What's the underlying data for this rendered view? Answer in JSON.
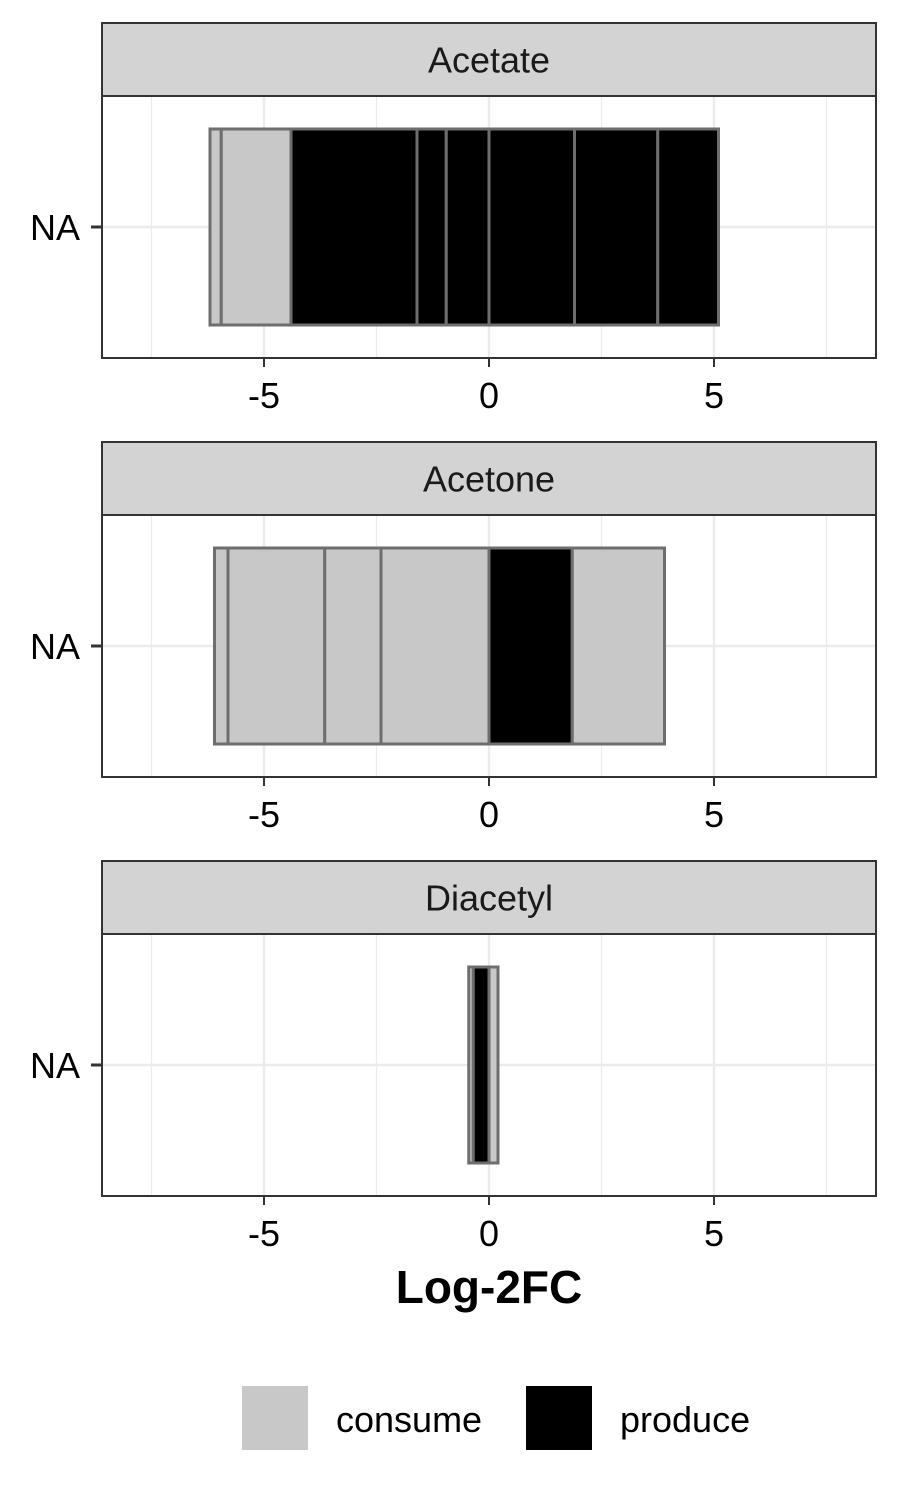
{
  "chart_data": {
    "type": "bar",
    "orientation": "horizontal",
    "stacking": "cumulative segments",
    "xlabel": "Log-2FC",
    "xlim": [
      -8.6,
      8.6
    ],
    "xticks": [
      -5,
      0,
      5
    ],
    "xticks_labels": [
      "-5",
      "0",
      "5"
    ],
    "minor_gridlines": [
      -7.5,
      -2.5,
      2.5,
      7.5
    ],
    "ytick_label": "NA",
    "grid": true,
    "legend_position": "bottom",
    "legend": [
      {
        "key": "consume",
        "label": "consume",
        "color": "#c8c8c8"
      },
      {
        "key": "produce",
        "label": "produce",
        "color": "#000000"
      }
    ],
    "outline_color": "#6e6e6e",
    "panels": [
      {
        "title": "Acetate",
        "segments": [
          {
            "from": -6.2,
            "to": -5.95,
            "type": "consume"
          },
          {
            "from": -5.95,
            "to": -4.4,
            "type": "consume"
          },
          {
            "from": -4.4,
            "to": -1.6,
            "type": "produce"
          },
          {
            "from": -1.6,
            "to": -0.95,
            "type": "produce"
          },
          {
            "from": -0.95,
            "to": 0.0,
            "type": "produce"
          },
          {
            "from": 0.0,
            "to": 1.9,
            "type": "produce"
          },
          {
            "from": 1.9,
            "to": 3.75,
            "type": "produce"
          },
          {
            "from": 3.75,
            "to": 5.1,
            "type": "produce"
          }
        ]
      },
      {
        "title": "Acetone",
        "segments": [
          {
            "from": -6.1,
            "to": -5.8,
            "type": "consume"
          },
          {
            "from": -5.8,
            "to": -3.65,
            "type": "consume"
          },
          {
            "from": -3.65,
            "to": -2.4,
            "type": "consume"
          },
          {
            "from": -2.4,
            "to": 0.0,
            "type": "consume"
          },
          {
            "from": 0.0,
            "to": 1.85,
            "type": "produce"
          },
          {
            "from": 1.85,
            "to": 3.9,
            "type": "consume"
          }
        ]
      },
      {
        "title": "Diacetyl",
        "segments": [
          {
            "from": -0.45,
            "to": -0.35,
            "type": "consume"
          },
          {
            "from": -0.35,
            "to": 0.0,
            "type": "produce"
          },
          {
            "from": 0.0,
            "to": 0.2,
            "type": "consume"
          }
        ]
      }
    ]
  }
}
